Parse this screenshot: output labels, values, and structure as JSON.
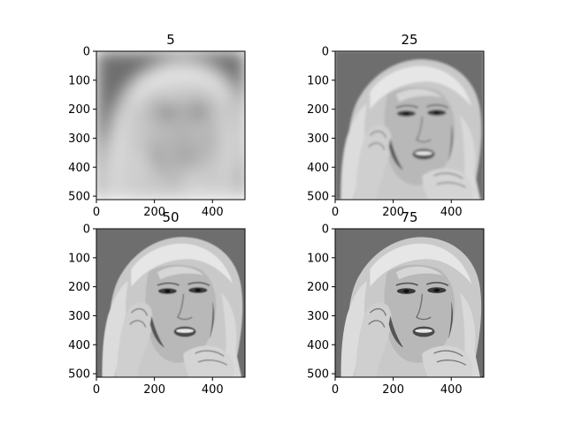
{
  "chart_data": {
    "type": "image-grid",
    "panels": [
      {
        "title": "5",
        "xticks": [
          "0",
          "200",
          "400"
        ],
        "yticks": [
          "0",
          "100",
          "200",
          "300",
          "400",
          "500"
        ],
        "xlim": [
          0,
          512
        ],
        "ylim": [
          512,
          0
        ],
        "blur_level": "heavy"
      },
      {
        "title": "25",
        "xticks": [
          "0",
          "200",
          "400"
        ],
        "yticks": [
          "0",
          "100",
          "200",
          "300",
          "400",
          "500"
        ],
        "xlim": [
          0,
          512
        ],
        "ylim": [
          512,
          0
        ],
        "blur_level": "slight"
      },
      {
        "title": "50",
        "xticks": [
          "0",
          "200",
          "400"
        ],
        "yticks": [
          "0",
          "100",
          "200",
          "300",
          "400",
          "500"
        ],
        "xlim": [
          0,
          512
        ],
        "ylim": [
          512,
          0
        ],
        "blur_level": "minimal"
      },
      {
        "title": "75",
        "xticks": [
          "0",
          "200",
          "400"
        ],
        "yticks": [
          "0",
          "100",
          "200",
          "300",
          "400",
          "500"
        ],
        "xlim": [
          0,
          512
        ],
        "ylim": [
          512,
          0
        ],
        "blur_level": "none"
      }
    ],
    "grid": false,
    "colormap": "gray"
  }
}
